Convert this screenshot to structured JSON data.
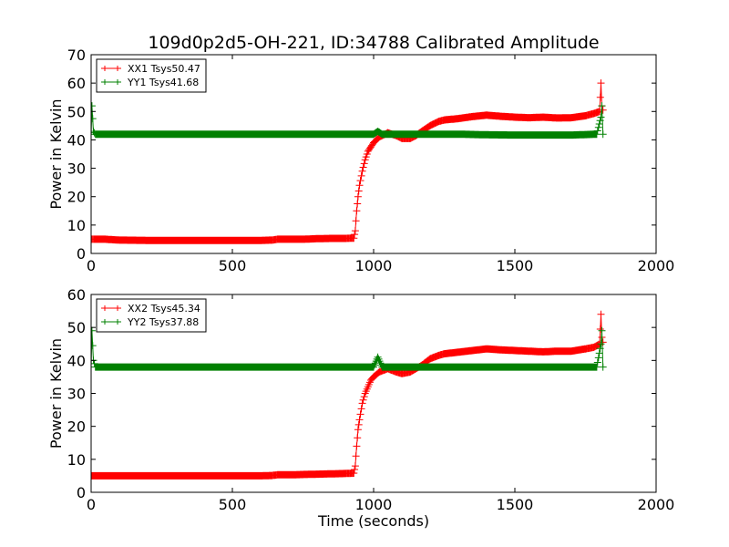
{
  "figure": {
    "title": "109d0p2d5-OH-221, ID:34788 Calibrated Amplitude",
    "xlabel": "Time (seconds)",
    "colors": {
      "xx": "#ff0000",
      "yy": "#008000",
      "axes": "#000000",
      "background": "#ffffff"
    }
  },
  "chart_data": [
    {
      "type": "line",
      "marker": "+",
      "title": "109d0p2d5-OH-221, ID:34788 Calibrated Amplitude",
      "xlabel": "",
      "ylabel": "Power in Kelvin",
      "xlim": [
        0,
        2000
      ],
      "ylim": [
        0,
        70
      ],
      "xticks": [
        "0",
        "500",
        "1000",
        "1500",
        "2000"
      ],
      "yticks": [
        "0",
        "10",
        "20",
        "30",
        "40",
        "50",
        "60",
        "70"
      ],
      "grid": false,
      "legend_position": "top-left",
      "series": [
        {
          "name": "XX1 Tsys50.47",
          "color": "#ff0000",
          "x": [
            0,
            3,
            10,
            50,
            100,
            200,
            300,
            400,
            500,
            600,
            640,
            660,
            700,
            750,
            800,
            850,
            900,
            930,
            935,
            940,
            945,
            950,
            960,
            970,
            980,
            990,
            1000,
            1020,
            1050,
            1080,
            1100,
            1130,
            1150,
            1170,
            1200,
            1230,
            1250,
            1300,
            1350,
            1400,
            1450,
            1500,
            1550,
            1600,
            1650,
            1700,
            1750,
            1780,
            1800,
            1805,
            1808,
            1812
          ],
          "y": [
            5,
            5,
            5,
            5,
            4.7,
            4.6,
            4.6,
            4.6,
            4.6,
            4.6,
            4.7,
            5,
            5,
            5,
            5.2,
            5.3,
            5.3,
            5.4,
            8,
            15,
            20,
            24,
            29,
            33,
            36,
            37.5,
            39,
            41,
            42.5,
            41.5,
            40.5,
            40.5,
            41.5,
            43,
            45,
            46.5,
            47,
            47.5,
            48.2,
            48.7,
            48.3,
            48,
            47.8,
            48,
            47.7,
            47.8,
            48.5,
            49.3,
            50,
            60,
            52,
            50.5
          ]
        },
        {
          "name": "YY1 Tsys41.68",
          "color": "#008000",
          "x": [
            0,
            3,
            8,
            15,
            100,
            300,
            500,
            700,
            900,
            1000,
            1015,
            1030,
            1100,
            1200,
            1300,
            1400,
            1500,
            1600,
            1700,
            1790,
            1805,
            1808,
            1812
          ],
          "y": [
            42,
            52,
            43,
            42,
            42,
            42,
            42,
            42,
            42,
            42,
            43,
            42,
            42,
            42,
            42,
            41.8,
            41.7,
            41.7,
            41.7,
            42,
            48,
            52,
            42
          ]
        }
      ]
    },
    {
      "type": "line",
      "marker": "+",
      "title": "",
      "xlabel": "Time (seconds)",
      "ylabel": "Power in Kelvin",
      "xlim": [
        0,
        2000
      ],
      "ylim": [
        0,
        60
      ],
      "xticks": [
        "0",
        "500",
        "1000",
        "1500",
        "2000"
      ],
      "yticks": [
        "0",
        "10",
        "20",
        "30",
        "40",
        "50",
        "60"
      ],
      "grid": false,
      "legend_position": "top-left",
      "series": [
        {
          "name": "XX2 Tsys45.34",
          "color": "#ff0000",
          "x": [
            0,
            100,
            200,
            300,
            400,
            500,
            600,
            640,
            660,
            700,
            750,
            800,
            850,
            900,
            930,
            935,
            940,
            945,
            950,
            960,
            970,
            980,
            990,
            1000,
            1020,
            1050,
            1080,
            1100,
            1130,
            1150,
            1170,
            1200,
            1230,
            1250,
            1300,
            1350,
            1400,
            1450,
            1500,
            1550,
            1600,
            1650,
            1700,
            1750,
            1780,
            1800,
            1805,
            1808,
            1812
          ],
          "y": [
            5,
            5,
            5,
            5,
            5,
            5,
            5,
            5.1,
            5.3,
            5.3,
            5.4,
            5.5,
            5.6,
            5.7,
            5.8,
            8,
            14,
            19,
            22,
            27,
            30,
            32,
            34,
            35,
            36.5,
            37.5,
            36.5,
            36,
            36.5,
            37.5,
            38.5,
            40.5,
            41.5,
            42,
            42.5,
            43,
            43.5,
            43.2,
            43,
            42.8,
            42.6,
            42.8,
            42.8,
            43.5,
            44,
            45,
            54,
            47,
            45.5
          ]
        },
        {
          "name": "YY2 Tsys37.88",
          "color": "#008000",
          "x": [
            0,
            3,
            8,
            15,
            100,
            300,
            500,
            700,
            900,
            1000,
            1015,
            1030,
            1100,
            1200,
            1300,
            1400,
            1500,
            1600,
            1700,
            1790,
            1805,
            1808,
            1812
          ],
          "y": [
            38,
            49,
            40,
            38,
            38,
            38,
            38,
            38,
            38,
            38,
            41,
            38,
            38,
            38,
            38,
            38,
            38,
            38,
            38,
            38,
            45,
            49,
            38
          ]
        }
      ]
    }
  ]
}
